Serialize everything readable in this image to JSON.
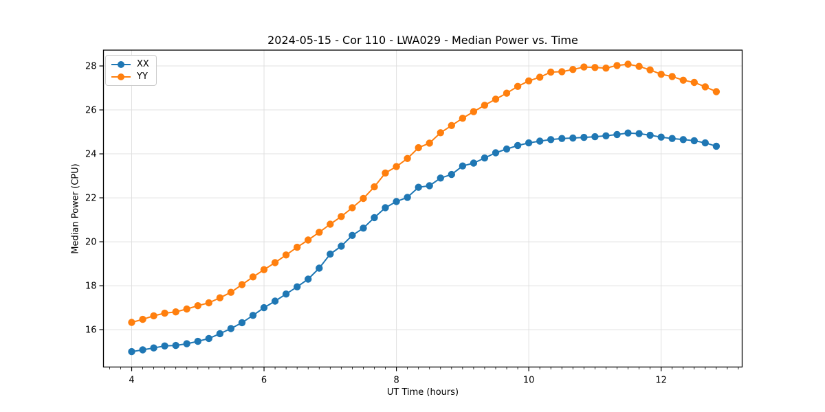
{
  "chart_data": {
    "type": "line",
    "title": "2024-05-15 - Cor 110 - LWA029 - Median Power vs. Time",
    "xlabel": "UT Time (hours)",
    "ylabel": "Median Power (CPU)",
    "xlim": [
      3.574,
      13.224
    ],
    "ylim": [
      14.3,
      28.72
    ],
    "x_ticks": [
      4,
      6,
      8,
      10,
      12
    ],
    "y_ticks": [
      16,
      18,
      20,
      22,
      24,
      26,
      28
    ],
    "x_minor_step": 0.1666667,
    "grid": "major",
    "grid_color": "#e0e0e0",
    "frame_color": "#000000",
    "legend_position": "upper-left",
    "x_start": 4.0,
    "x_step": 0.1666667,
    "n_points": 54,
    "x_end": 12.8333,
    "series": [
      {
        "name": "XX",
        "color": "#1f77b4",
        "marker": "circle",
        "values": [
          15.0,
          15.08,
          15.17,
          15.26,
          15.28,
          15.36,
          15.47,
          15.6,
          15.82,
          16.05,
          16.32,
          16.65,
          17.0,
          17.3,
          17.62,
          17.95,
          18.3,
          18.8,
          19.44,
          19.8,
          20.29,
          20.62,
          21.1,
          21.55,
          21.83,
          22.02,
          22.48,
          22.55,
          22.9,
          23.06,
          23.45,
          23.58,
          23.81,
          24.05,
          24.22,
          24.38,
          24.5,
          24.58,
          24.65,
          24.7,
          24.72,
          24.75,
          24.78,
          24.82,
          24.88,
          24.95,
          24.92,
          24.85,
          24.76,
          24.7,
          24.65,
          24.6,
          24.5,
          24.35
        ]
      },
      {
        "name": "YY",
        "color": "#ff7f0e",
        "marker": "circle",
        "values": [
          16.33,
          16.47,
          16.63,
          16.75,
          16.81,
          16.94,
          17.09,
          17.22,
          17.45,
          17.7,
          18.05,
          18.4,
          18.73,
          19.05,
          19.4,
          19.75,
          20.08,
          20.43,
          20.8,
          21.15,
          21.55,
          21.97,
          22.5,
          23.13,
          23.42,
          23.79,
          24.28,
          24.49,
          24.96,
          25.29,
          25.62,
          25.92,
          26.21,
          26.49,
          26.76,
          27.07,
          27.32,
          27.49,
          27.72,
          27.74,
          27.84,
          27.95,
          27.93,
          27.9,
          28.02,
          28.08,
          27.98,
          27.82,
          27.62,
          27.52,
          27.35,
          27.25,
          27.05,
          26.83
        ]
      }
    ]
  }
}
